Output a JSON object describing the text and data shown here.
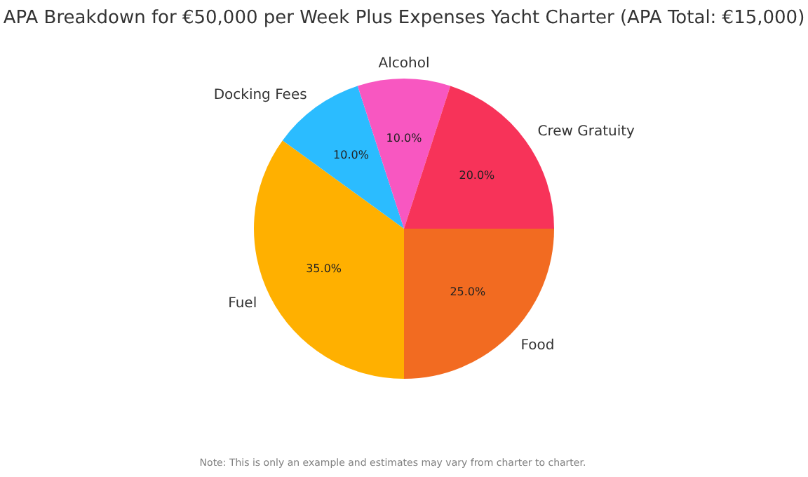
{
  "chart_data": {
    "type": "pie",
    "title": "APA Breakdown for €50,000 per Week Plus Expenses Yacht Charter (APA Total: €15,000)",
    "categories": [
      "Food",
      "Fuel",
      "Docking Fees",
      "Alcohol",
      "Crew Gratuity"
    ],
    "values": [
      25,
      35,
      10,
      10,
      20
    ],
    "colors": [
      "#f26b21",
      "#ffb000",
      "#2bbcff",
      "#f857c1",
      "#f73359"
    ],
    "value_labels": [
      "25.0%",
      "35.0%",
      "10.0%",
      "10.0%",
      "20.0%"
    ],
    "legend": false,
    "annotations": [
      "Note: This is only an example and estimates may vary from charter to charter."
    ]
  }
}
